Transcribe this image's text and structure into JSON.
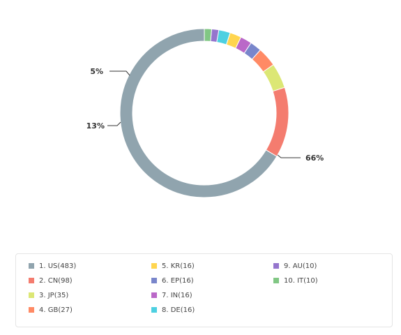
{
  "chart_data": {
    "type": "pie",
    "variant": "donut",
    "title": "",
    "legend_position": "bottom",
    "slices": [
      {
        "label": "US",
        "legend": "1. US(483)",
        "value": 483,
        "color": "#90a4ae",
        "percent_label": "66%"
      },
      {
        "label": "CN",
        "legend": "2. CN(98)",
        "value": 98,
        "color": "#f47c6f",
        "percent_label": "13%"
      },
      {
        "label": "JP",
        "legend": "3. JP(35)",
        "value": 35,
        "color": "#dce775",
        "percent_label": "5%"
      },
      {
        "label": "GB",
        "legend": "4. GB(27)",
        "value": 27,
        "color": "#ff8a65",
        "percent_label": ""
      },
      {
        "label": "EP",
        "legend": "6. EP(16)",
        "value": 16,
        "color": "#7986cb",
        "percent_label": ""
      },
      {
        "label": "IN",
        "legend": "7. IN(16)",
        "value": 16,
        "color": "#ba68c8",
        "percent_label": ""
      },
      {
        "label": "KR",
        "legend": "5. KR(16)",
        "value": 16,
        "color": "#ffd54f",
        "percent_label": ""
      },
      {
        "label": "DE",
        "legend": "8. DE(16)",
        "value": 16,
        "color": "#4dd0e1",
        "percent_label": ""
      },
      {
        "label": "AU",
        "legend": "9. AU(10)",
        "value": 10,
        "color": "#9575cd",
        "percent_label": ""
      },
      {
        "label": "IT",
        "legend": "10. IT(10)",
        "value": 10,
        "color": "#81c784",
        "percent_label": ""
      }
    ],
    "legend_order": [
      "US",
      "CN",
      "JP",
      "GB",
      "KR",
      "EP",
      "IN",
      "DE",
      "AU",
      "IT"
    ]
  }
}
